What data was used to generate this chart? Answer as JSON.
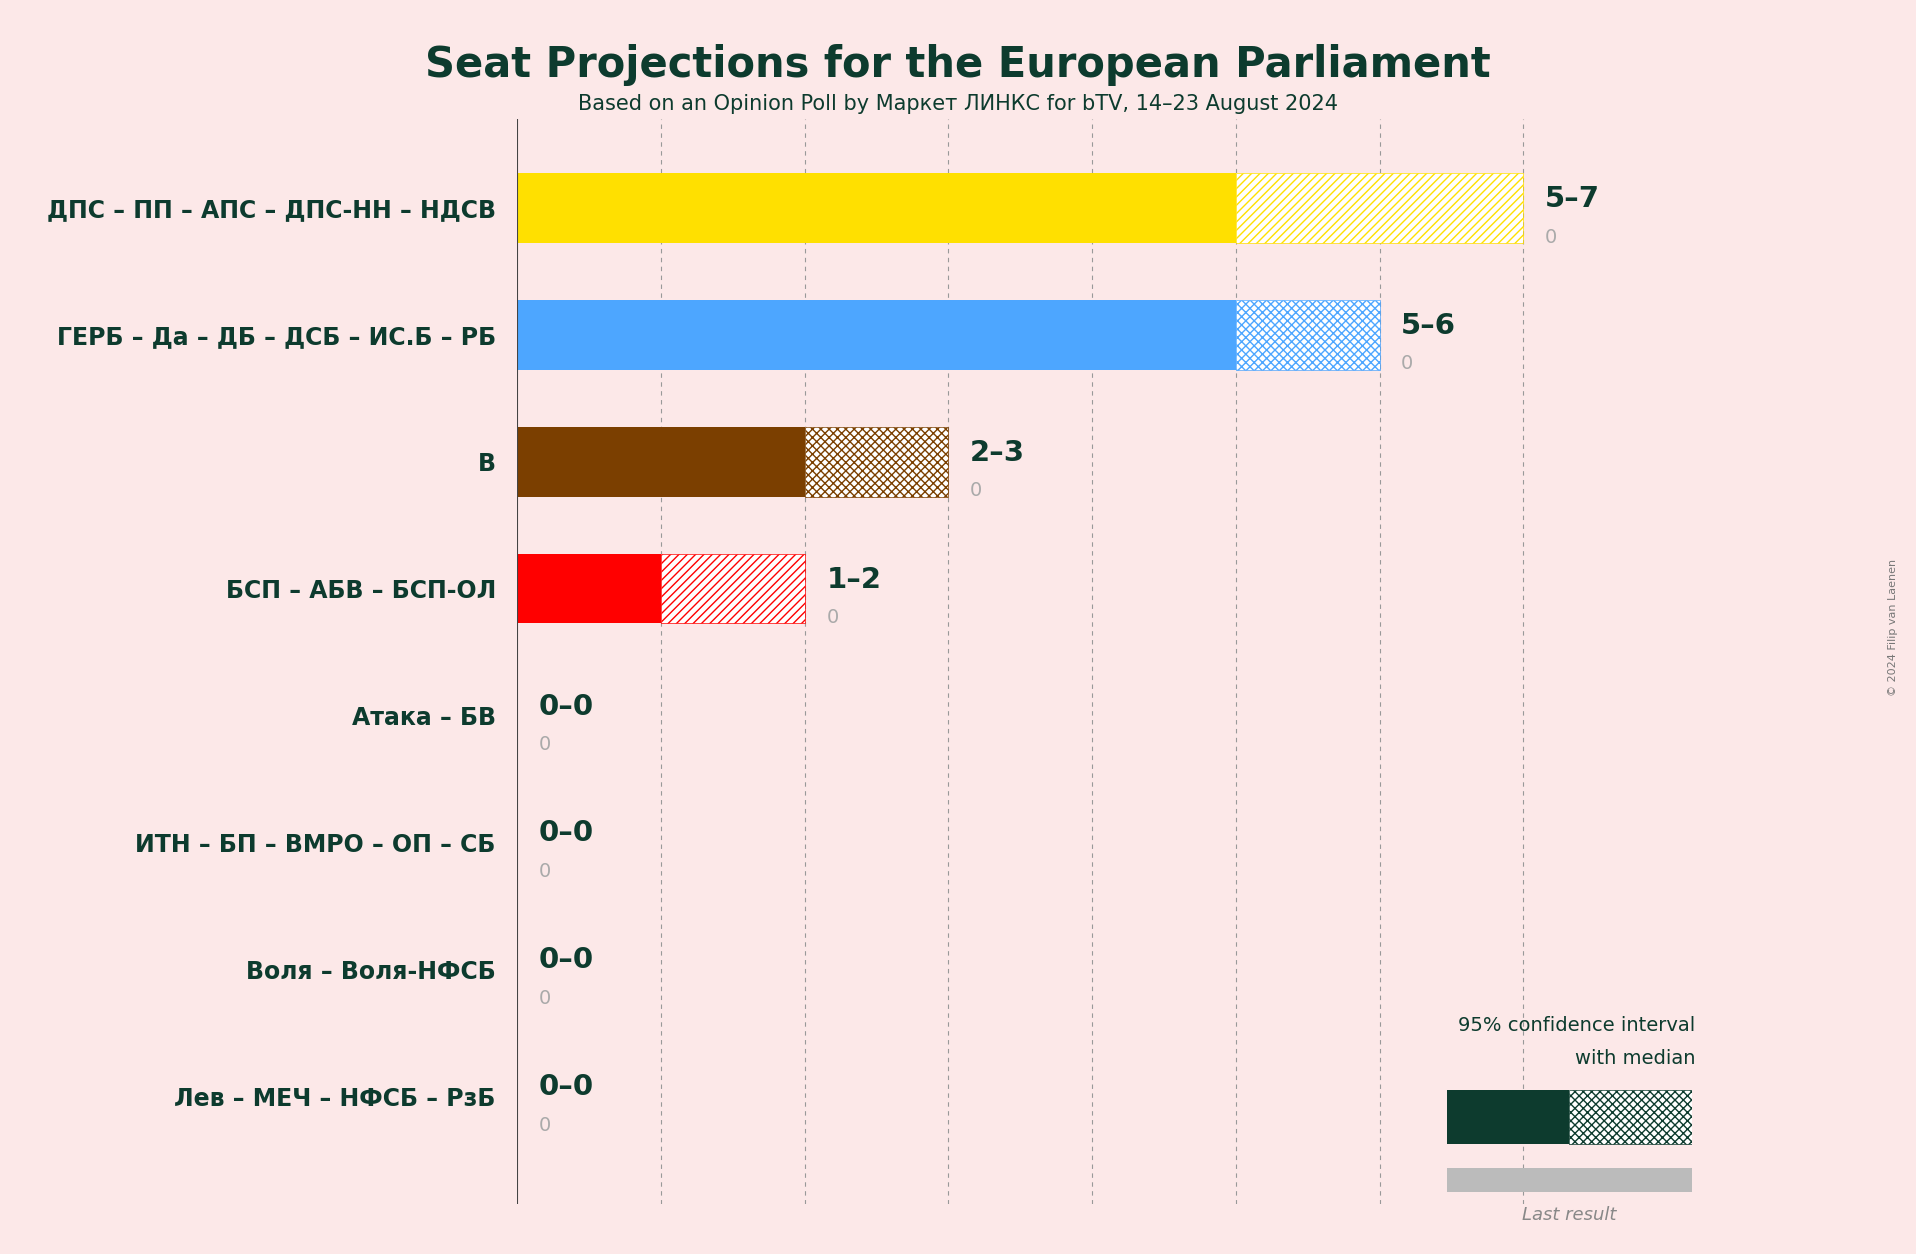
{
  "title": "Seat Projections for the European Parliament",
  "subtitle": "Based on an Opinion Poll by Маркет ЛИНКС for bTV, 14–23 August 2024",
  "copyright": "© 2024 Filip van Laenen",
  "background_color": "#fce8e8",
  "text_color": "#0d3b2e",
  "parties": [
    "ДПС – ПП – АПС – ДПС-НН – НДСВ",
    "ГЕРБ – Да – ДБ – ДСБ – ИС.Б – РБ",
    "В",
    "БСП – АБВ – БСП-ОЛ",
    "Атака – БВ",
    "ИТН – БП – ВМРО – ОП – СБ",
    "Воля – Воля-НФСБ",
    "Лев – МЕЧ – НФСБ – РзБ"
  ],
  "bar_median": [
    5,
    5,
    2,
    1,
    0,
    0,
    0,
    0
  ],
  "bar_max": [
    7,
    6,
    3,
    2,
    0,
    0,
    0,
    0
  ],
  "last_result": [
    0,
    0,
    0,
    0,
    0,
    0,
    0,
    0
  ],
  "labels": [
    "5–7",
    "5–6",
    "2–3",
    "1–2",
    "0–0",
    "0–0",
    "0–0",
    "0–0"
  ],
  "bar_colors": [
    "#FFE000",
    "#4da6ff",
    "#7B3F00",
    "#FF0000",
    "#FFE000",
    "#4da6ff",
    "#7B3F00",
    "#FF0000"
  ],
  "hatch_styles": [
    "////",
    "xxxx",
    "xxxx",
    "////"
  ],
  "xlim": [
    0,
    8
  ],
  "grid_ticks": [
    1,
    2,
    3,
    4,
    5,
    6,
    7
  ]
}
